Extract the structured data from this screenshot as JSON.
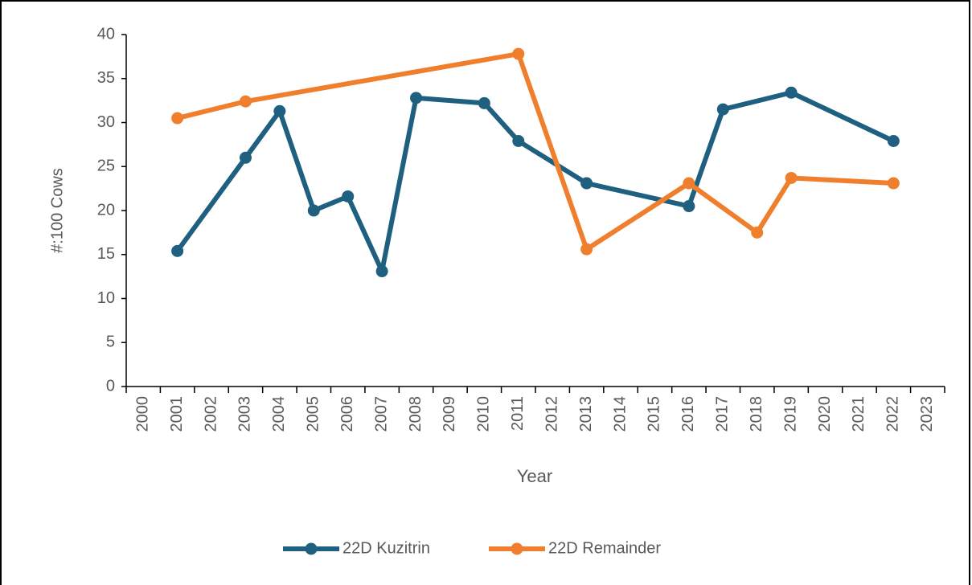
{
  "chart_data": {
    "type": "line",
    "xlabel": "Year",
    "ylabel": "#:100 Cows",
    "xlim": [
      1999.5,
      2023.5
    ],
    "xticks": [
      2000,
      2001,
      2002,
      2003,
      2004,
      2005,
      2006,
      2007,
      2008,
      2009,
      2010,
      2011,
      2012,
      2013,
      2014,
      2015,
      2016,
      2017,
      2018,
      2019,
      2020,
      2021,
      2022,
      2023
    ],
    "ylim": [
      0,
      40
    ],
    "yticks": [
      0,
      5,
      10,
      15,
      20,
      25,
      30,
      35,
      40
    ],
    "legend": "bottom",
    "series": [
      {
        "name": "22D Kuzitrin",
        "color": "#1f5f80",
        "x": [
          2001,
          2003,
          2004,
          2005,
          2006,
          2007,
          2008,
          2010,
          2011,
          2013,
          2016,
          2017,
          2019,
          2022
        ],
        "values": [
          15.4,
          26.0,
          31.3,
          20.0,
          21.6,
          13.1,
          32.8,
          32.2,
          27.9,
          23.1,
          20.5,
          31.5,
          33.4,
          27.9
        ]
      },
      {
        "name": "22D Remainder",
        "color": "#f07f2d",
        "x": [
          2001,
          2003,
          2011,
          2013,
          2016,
          2018,
          2019,
          2022
        ],
        "values": [
          30.5,
          32.4,
          37.8,
          15.6,
          23.1,
          17.5,
          23.7,
          23.1
        ]
      }
    ]
  }
}
